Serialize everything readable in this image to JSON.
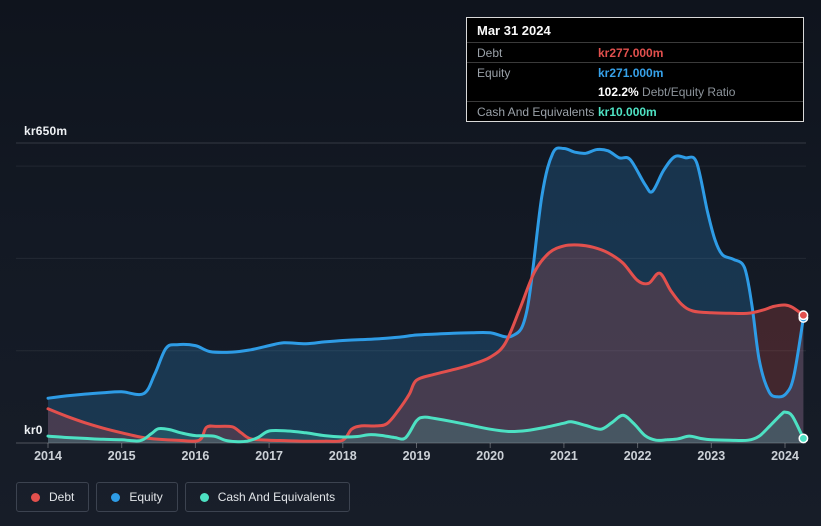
{
  "tooltip": {
    "date": "Mar 31 2024",
    "rows": [
      {
        "label": "Debt",
        "value": "kr277.000m"
      },
      {
        "label": "Equity",
        "value": "kr271.000m"
      },
      {
        "label": "Cash And Equivalents",
        "value": "kr10.000m"
      }
    ],
    "ratio": {
      "value": "102.2%",
      "label": "Debt/Equity Ratio"
    }
  },
  "legend": {
    "items": [
      {
        "label": "Debt",
        "color": "#e2504d"
      },
      {
        "label": "Equity",
        "color": "#2e9ce6"
      },
      {
        "label": "Cash And Equivalents",
        "color": "#4de1c3"
      }
    ]
  },
  "chart_data": {
    "type": "area",
    "title": "Debt, Equity and Cash history (kr millions)",
    "x_axis": {
      "labels": [
        "2014",
        "2015",
        "2016",
        "2017",
        "2018",
        "2019",
        "2020",
        "2021",
        "2022",
        "2023",
        "2024"
      ]
    },
    "y_axis": {
      "top_label": "kr650m",
      "bottom_label": "kr0",
      "min": 0,
      "max": 650,
      "gridline_values": [
        650,
        600,
        400,
        200,
        0
      ]
    },
    "series": [
      {
        "name": "Equity",
        "color": "#2e9ce6",
        "fill": "rgba(46,156,230,0.22)",
        "points": [
          [
            2014,
            97
          ],
          [
            2014.25,
            102
          ],
          [
            2014.5,
            106
          ],
          [
            2014.75,
            109
          ],
          [
            2015,
            111
          ],
          [
            2015.3,
            107
          ],
          [
            2015.45,
            150
          ],
          [
            2015.6,
            205
          ],
          [
            2015.75,
            213
          ],
          [
            2016,
            211
          ],
          [
            2016.2,
            198
          ],
          [
            2016.5,
            197
          ],
          [
            2016.75,
            202
          ],
          [
            2017,
            211
          ],
          [
            2017.2,
            217
          ],
          [
            2017.5,
            215
          ],
          [
            2017.75,
            219
          ],
          [
            2018,
            222
          ],
          [
            2018.25,
            224
          ],
          [
            2018.5,
            226
          ],
          [
            2018.75,
            229
          ],
          [
            2019,
            234
          ],
          [
            2019.25,
            236
          ],
          [
            2019.5,
            238
          ],
          [
            2019.75,
            239
          ],
          [
            2020,
            239
          ],
          [
            2020.3,
            232
          ],
          [
            2020.5,
            288
          ],
          [
            2020.7,
            534
          ],
          [
            2020.85,
            628
          ],
          [
            2021,
            638
          ],
          [
            2021.15,
            630
          ],
          [
            2021.3,
            628
          ],
          [
            2021.45,
            636
          ],
          [
            2021.6,
            633
          ],
          [
            2021.75,
            618
          ],
          [
            2021.9,
            614
          ],
          [
            2022.1,
            560
          ],
          [
            2022.2,
            545
          ],
          [
            2022.35,
            590
          ],
          [
            2022.5,
            620
          ],
          [
            2022.65,
            618
          ],
          [
            2022.8,
            608
          ],
          [
            2022.95,
            500
          ],
          [
            2023.05,
            440
          ],
          [
            2023.15,
            408
          ],
          [
            2023.3,
            398
          ],
          [
            2023.45,
            380
          ],
          [
            2023.55,
            300
          ],
          [
            2023.65,
            180
          ],
          [
            2023.78,
            112
          ],
          [
            2023.9,
            100
          ],
          [
            2024.02,
            108
          ],
          [
            2024.12,
            145
          ],
          [
            2024.25,
            271
          ]
        ]
      },
      {
        "name": "Debt",
        "color": "#e2504d",
        "fill": "rgba(226,80,77,0.22)",
        "points": [
          [
            2014,
            74
          ],
          [
            2014.25,
            58
          ],
          [
            2014.5,
            44
          ],
          [
            2014.75,
            32
          ],
          [
            2015,
            22
          ],
          [
            2015.25,
            13
          ],
          [
            2015.5,
            8
          ],
          [
            2015.75,
            6
          ],
          [
            2016.05,
            6
          ],
          [
            2016.15,
            34
          ],
          [
            2016.3,
            36
          ],
          [
            2016.5,
            35
          ],
          [
            2016.62,
            22
          ],
          [
            2016.75,
            9
          ],
          [
            2017,
            6
          ],
          [
            2017.25,
            5
          ],
          [
            2017.5,
            4
          ],
          [
            2017.75,
            4
          ],
          [
            2018,
            6
          ],
          [
            2018.12,
            30
          ],
          [
            2018.25,
            37
          ],
          [
            2018.45,
            37
          ],
          [
            2018.6,
            42
          ],
          [
            2018.75,
            70
          ],
          [
            2018.9,
            105
          ],
          [
            2019,
            136
          ],
          [
            2019.25,
            149
          ],
          [
            2019.5,
            159
          ],
          [
            2019.75,
            170
          ],
          [
            2020,
            186
          ],
          [
            2020.2,
            215
          ],
          [
            2020.4,
            290
          ],
          [
            2020.6,
            370
          ],
          [
            2020.8,
            412
          ],
          [
            2021,
            427
          ],
          [
            2021.2,
            429
          ],
          [
            2021.4,
            424
          ],
          [
            2021.6,
            412
          ],
          [
            2021.8,
            390
          ],
          [
            2022,
            352
          ],
          [
            2022.15,
            346
          ],
          [
            2022.3,
            368
          ],
          [
            2022.45,
            330
          ],
          [
            2022.6,
            300
          ],
          [
            2022.75,
            286
          ],
          [
            2023,
            282
          ],
          [
            2023.25,
            281
          ],
          [
            2023.5,
            281
          ],
          [
            2023.7,
            288
          ],
          [
            2023.85,
            296
          ],
          [
            2024,
            299
          ],
          [
            2024.1,
            294
          ],
          [
            2024.25,
            277
          ]
        ]
      },
      {
        "name": "Cash And Equivalents",
        "color": "#4de1c3",
        "fill": "rgba(77,225,195,0.16)",
        "points": [
          [
            2014,
            15
          ],
          [
            2014.25,
            12
          ],
          [
            2014.5,
            10
          ],
          [
            2014.75,
            8
          ],
          [
            2015,
            7
          ],
          [
            2015.25,
            5
          ],
          [
            2015.4,
            20
          ],
          [
            2015.5,
            31
          ],
          [
            2015.65,
            29
          ],
          [
            2015.8,
            22
          ],
          [
            2016,
            16
          ],
          [
            2016.25,
            15
          ],
          [
            2016.4,
            6
          ],
          [
            2016.55,
            3
          ],
          [
            2016.7,
            4
          ],
          [
            2016.85,
            12
          ],
          [
            2017,
            26
          ],
          [
            2017.25,
            26
          ],
          [
            2017.5,
            22
          ],
          [
            2017.75,
            16
          ],
          [
            2018,
            13
          ],
          [
            2018.2,
            14
          ],
          [
            2018.35,
            18
          ],
          [
            2018.5,
            17
          ],
          [
            2018.7,
            12
          ],
          [
            2018.85,
            11
          ],
          [
            2019,
            48
          ],
          [
            2019.1,
            56
          ],
          [
            2019.25,
            53
          ],
          [
            2019.5,
            46
          ],
          [
            2019.75,
            38
          ],
          [
            2020,
            30
          ],
          [
            2020.25,
            25
          ],
          [
            2020.5,
            27
          ],
          [
            2020.75,
            34
          ],
          [
            2021,
            43
          ],
          [
            2021.1,
            46
          ],
          [
            2021.3,
            38
          ],
          [
            2021.5,
            30
          ],
          [
            2021.65,
            44
          ],
          [
            2021.8,
            60
          ],
          [
            2021.95,
            42
          ],
          [
            2022.1,
            16
          ],
          [
            2022.25,
            6
          ],
          [
            2022.4,
            7
          ],
          [
            2022.55,
            9
          ],
          [
            2022.7,
            15
          ],
          [
            2022.85,
            10
          ],
          [
            2023,
            7
          ],
          [
            2023.25,
            6
          ],
          [
            2023.5,
            6
          ],
          [
            2023.65,
            15
          ],
          [
            2023.8,
            38
          ],
          [
            2023.95,
            62
          ],
          [
            2024,
            67
          ],
          [
            2024.1,
            58
          ],
          [
            2024.25,
            10
          ]
        ]
      }
    ],
    "x_range": [
      2014,
      2024.25
    ],
    "grid": true,
    "legend_position": "bottom",
    "end_markers": true
  }
}
